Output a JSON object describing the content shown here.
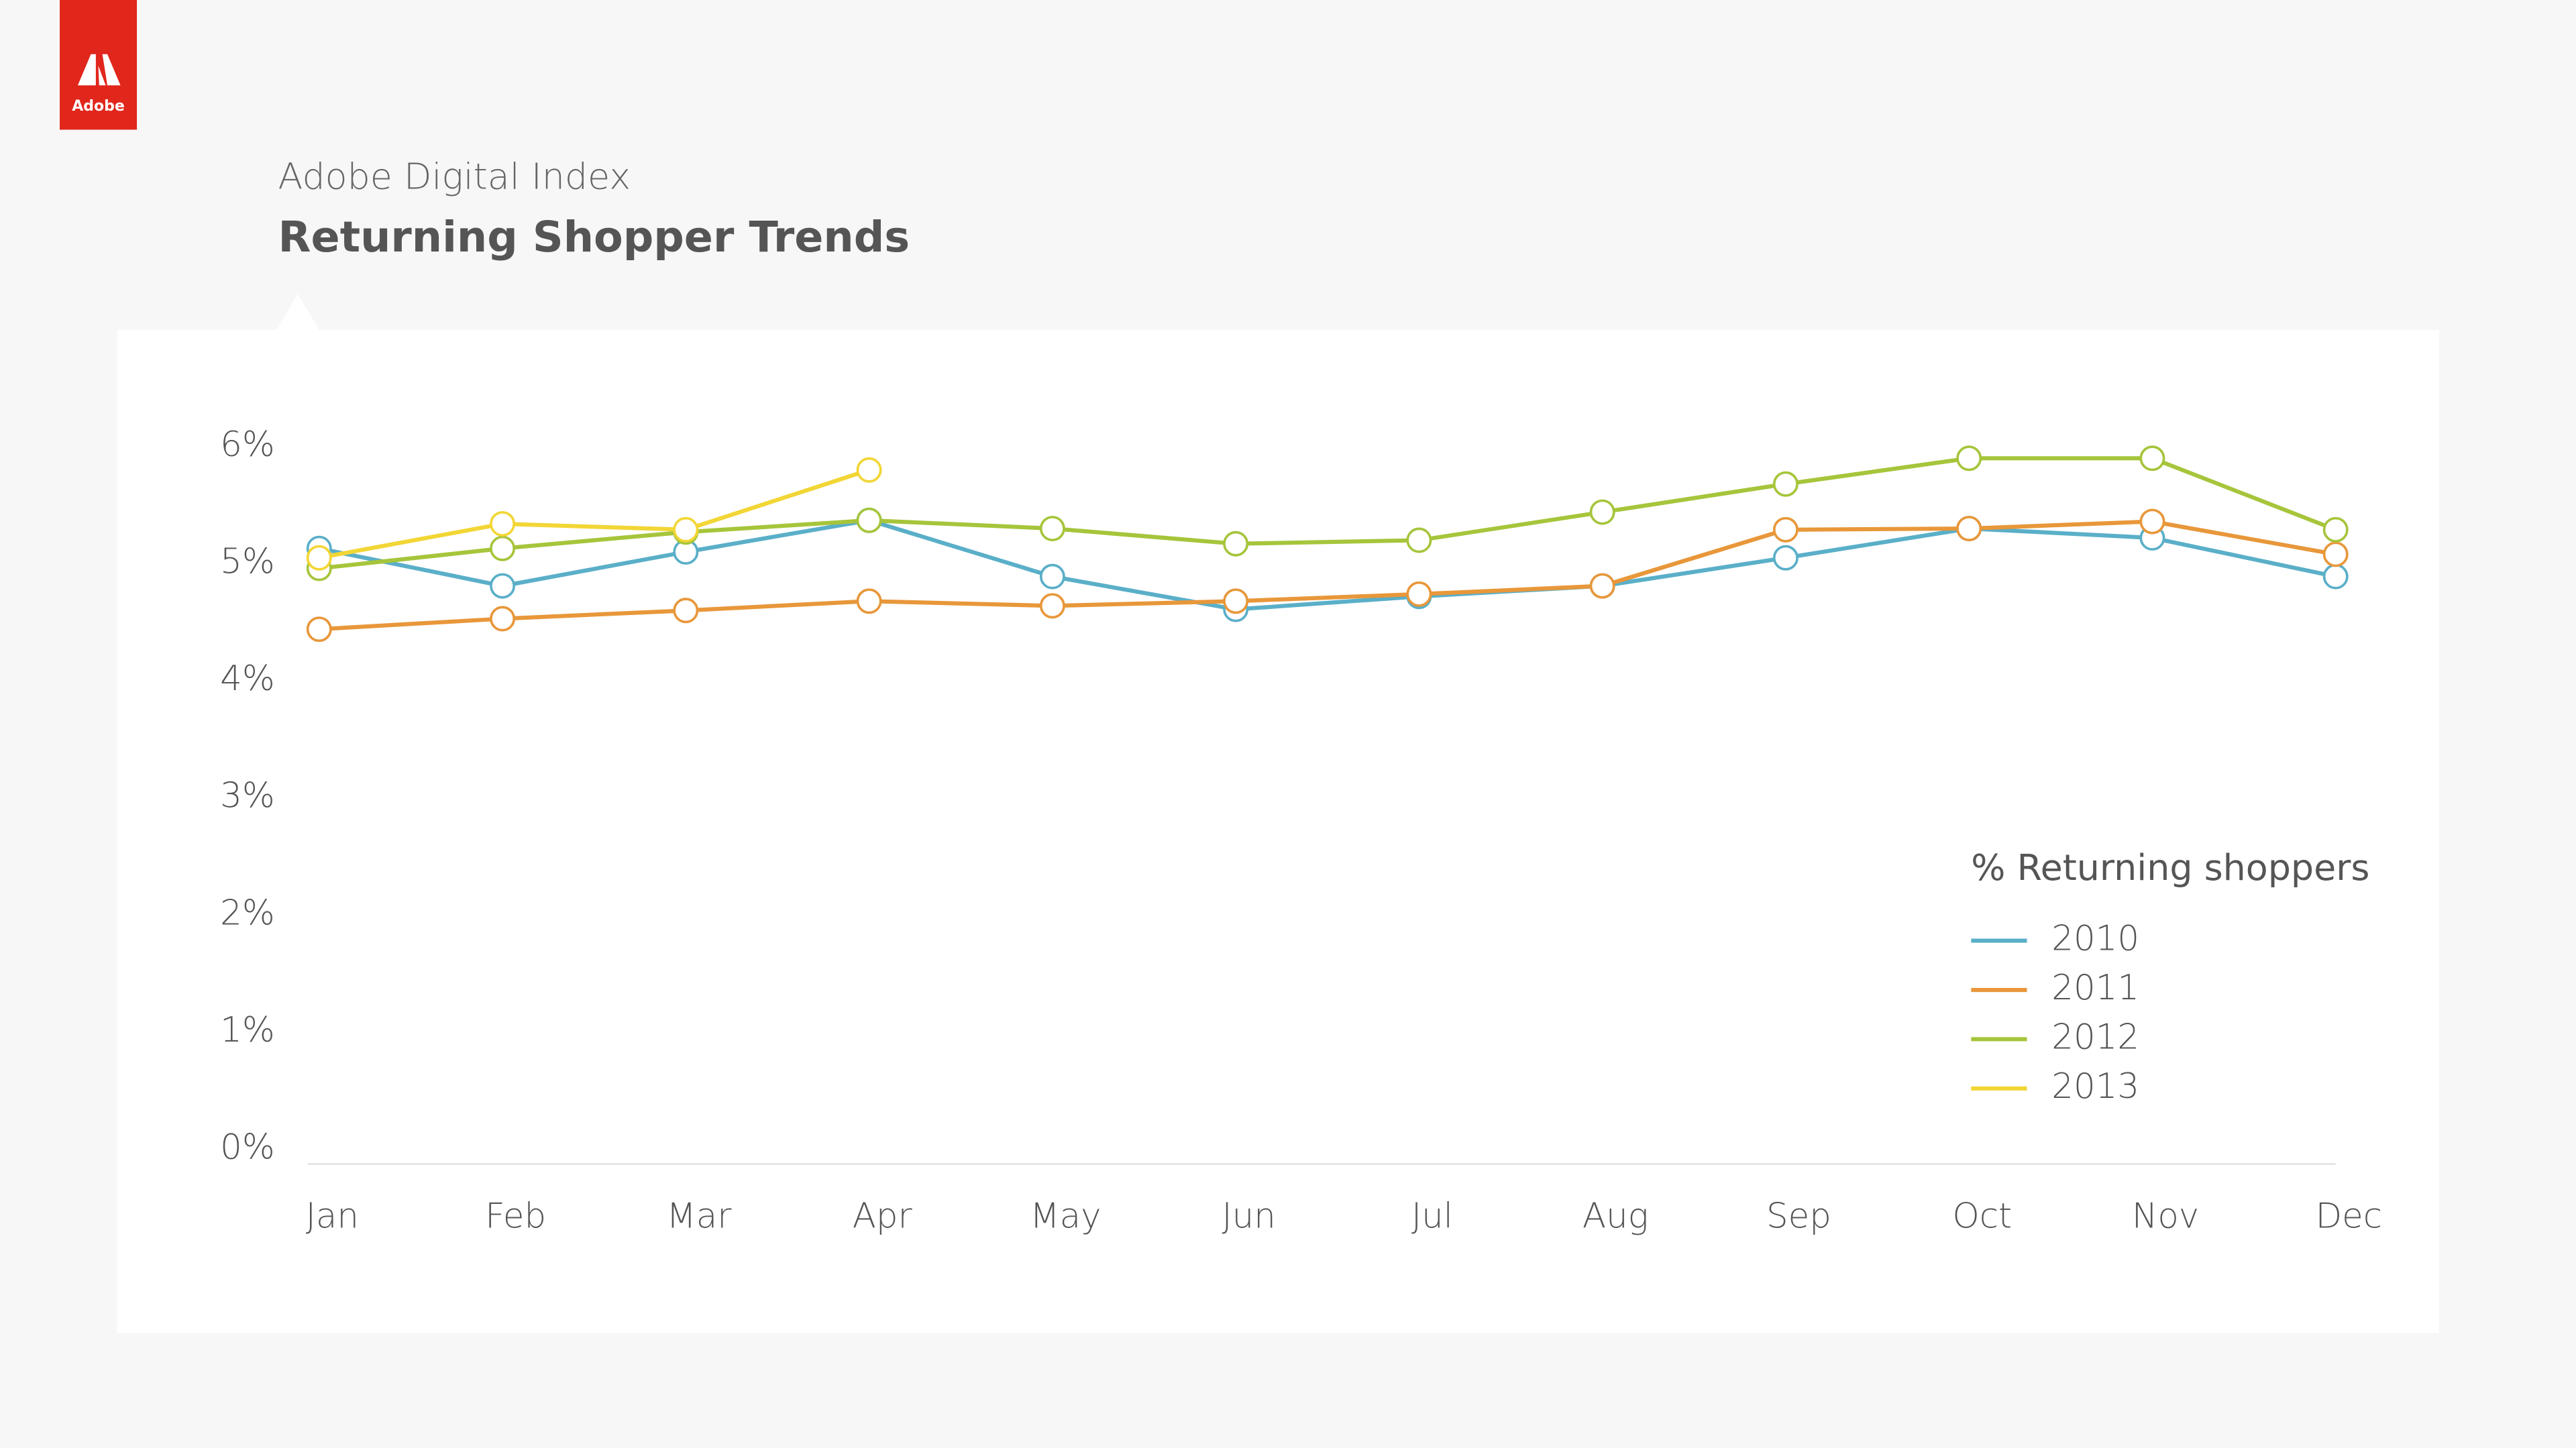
{
  "logo": "Adobe",
  "chart_data": {
    "type": "line",
    "subtitle": "Adobe Digital Index",
    "title": "Returning Shopper Trends",
    "categories": [
      "Jan",
      "Feb",
      "Mar",
      "Apr",
      "May",
      "Jun",
      "Jul",
      "Aug",
      "Sep",
      "Oct",
      "Nov",
      "Dec"
    ],
    "ylim": [
      0,
      6
    ],
    "yticks": [
      {
        "value": 0,
        "label": "0%"
      },
      {
        "value": 1,
        "label": "1%"
      },
      {
        "value": 2,
        "label": "2%"
      },
      {
        "value": 3,
        "label": "3%"
      },
      {
        "value": 4,
        "label": "4%"
      },
      {
        "value": 5,
        "label": "5%"
      },
      {
        "value": 6,
        "label": "6%"
      }
    ],
    "legend_title": "% Returning shoppers",
    "legend": "lower right",
    "series": [
      {
        "name": "2010",
        "color": "#5aafc8",
        "values": [
          5.13,
          4.81,
          5.1,
          5.37,
          4.89,
          4.61,
          4.72,
          4.81,
          5.05,
          5.3,
          5.22,
          4.89
        ]
      },
      {
        "name": "2011",
        "color": "#e8973a",
        "values": [
          4.44,
          4.53,
          4.6,
          4.68,
          4.64,
          4.68,
          4.74,
          4.81,
          5.29,
          5.3,
          5.36,
          5.08
        ]
      },
      {
        "name": "2012",
        "color": "#a6c53b",
        "values": [
          4.96,
          5.13,
          5.27,
          5.37,
          5.3,
          5.17,
          5.2,
          5.44,
          5.68,
          5.9,
          5.9,
          5.29
        ]
      },
      {
        "name": "2013",
        "color": "#f2d635",
        "values": [
          5.05,
          5.34,
          5.29,
          5.8,
          null,
          null,
          null,
          null,
          null,
          null,
          null,
          null
        ]
      }
    ]
  }
}
